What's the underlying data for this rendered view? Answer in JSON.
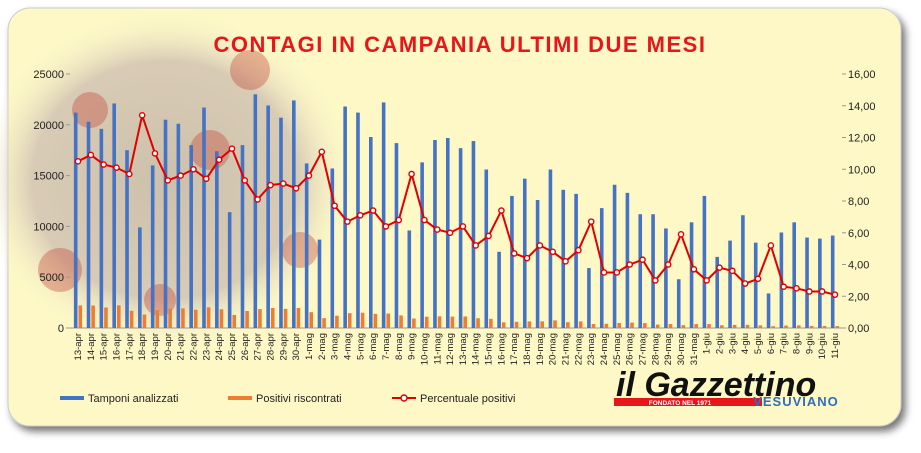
{
  "chart_data": {
    "type": "bar",
    "title": "CONTAGI IN CAMPANIA ULTIMI DUE MESI",
    "categories": [
      "13-apr",
      "14-apr",
      "15-apr",
      "16-apr",
      "17-apr",
      "18-apr",
      "19-apr",
      "20-apr",
      "21-apr",
      "22-apr",
      "23-apr",
      "24-apr",
      "25-apr",
      "26-apr",
      "27-apr",
      "28-apr",
      "29-apr",
      "30-apr",
      "1-mag",
      "2-mag",
      "3-mag",
      "4-mag",
      "5-mag",
      "6-mag",
      "7-mag",
      "8-mag",
      "9-mag",
      "10-mag",
      "11-mag",
      "12-mag",
      "13-mag",
      "14-mag",
      "15-mag",
      "16-mag",
      "17-mag",
      "18-mag",
      "19-mag",
      "20-mag",
      "21-mag",
      "22-mag",
      "23-mag",
      "24-mag",
      "25-mag",
      "26-mag",
      "27-mag",
      "28-mag",
      "29-mag",
      "30-mag",
      "31-mag",
      "1-giu",
      "2-giu",
      "3-giu",
      "4-giu",
      "5-giu",
      "6-giu",
      "7-giu",
      "8-giu",
      "9-giu",
      "10-giu",
      "11-giu"
    ],
    "series": [
      {
        "name": "Tamponi analizzati",
        "color": "#4472c4",
        "type": "bar",
        "values": [
          21200,
          20300,
          19600,
          22100,
          17500,
          9900,
          16000,
          20500,
          20100,
          18000,
          21700,
          17400,
          11400,
          18000,
          23000,
          21900,
          20700,
          22400,
          16200,
          8700,
          15700,
          21800,
          21200,
          18800,
          22200,
          18200,
          9600,
          16300,
          18500,
          18700,
          17700,
          18400,
          15600,
          7500,
          13000,
          14700,
          12600,
          15600,
          13600,
          13200,
          5900,
          11800,
          14100,
          13300,
          11200,
          11200,
          9800,
          4800,
          10400,
          13000,
          7000,
          8600,
          11100,
          8400,
          3400,
          9400,
          10400,
          8900,
          8800,
          9100
        ]
      },
      {
        "name": "Positivi riscontrati",
        "color": "#ed7d31",
        "type": "bar",
        "values": [
          2226,
          2213,
          2019,
          2232,
          1698,
          1327,
          1760,
          1907,
          1930,
          1800,
          2040,
          1844,
          1288,
          1674,
          1863,
          1971,
          1884,
          1971,
          1555,
          966,
          1209,
          1461,
          1505,
          1391,
          1421,
          1238,
          931,
          1108,
          1147,
          1122,
          1133,
          957,
          905,
          555,
          611,
          647,
          655,
          749,
          571,
          647,
          395,
          413,
          494,
          532,
          482,
          336,
          392,
          283,
          385,
          390,
          266,
          310,
          311,
          260,
          177,
          244,
          260,
          205,
          202,
          191
        ]
      },
      {
        "name": "Percentuale positivi",
        "color": "#e00000",
        "type": "line",
        "axis": "y2",
        "values": [
          10.5,
          10.9,
          10.3,
          10.1,
          9.7,
          13.4,
          11.0,
          9.3,
          9.6,
          10.0,
          9.4,
          10.6,
          11.3,
          9.3,
          8.1,
          9.0,
          9.1,
          8.8,
          9.6,
          11.1,
          7.7,
          6.7,
          7.1,
          7.4,
          6.4,
          6.8,
          9.7,
          6.8,
          6.2,
          6.0,
          6.4,
          5.2,
          5.8,
          7.4,
          4.7,
          4.4,
          5.2,
          4.8,
          4.2,
          4.9,
          6.7,
          3.5,
          3.5,
          4.0,
          4.3,
          3.0,
          4.0,
          5.9,
          3.7,
          3.0,
          3.8,
          3.6,
          2.8,
          3.1,
          5.2,
          2.6,
          2.5,
          2.3,
          2.3,
          2.1
        ]
      }
    ],
    "ylim": [
      0,
      25000
    ],
    "yticks": [
      0,
      5000,
      10000,
      15000,
      20000,
      25000
    ],
    "y2lim": [
      0,
      16
    ],
    "y2ticks": [
      {
        "value": 0,
        "label": "0,00"
      },
      {
        "value": 2,
        "label": "2,00"
      },
      {
        "value": 4,
        "label": "4,00"
      },
      {
        "value": 6,
        "label": "6,00"
      },
      {
        "value": 8,
        "label": "8,00"
      },
      {
        "value": 10,
        "label": "10,00"
      },
      {
        "value": 12,
        "label": "12,00"
      },
      {
        "value": 14,
        "label": "14,00"
      },
      {
        "value": 16,
        "label": "16,00"
      }
    ],
    "legend": "bottom",
    "grid": false
  },
  "logo": {
    "name": "il Gazzettino",
    "founded": "FONDATO NEL 1971",
    "subtitle": "VESUVIANO"
  }
}
